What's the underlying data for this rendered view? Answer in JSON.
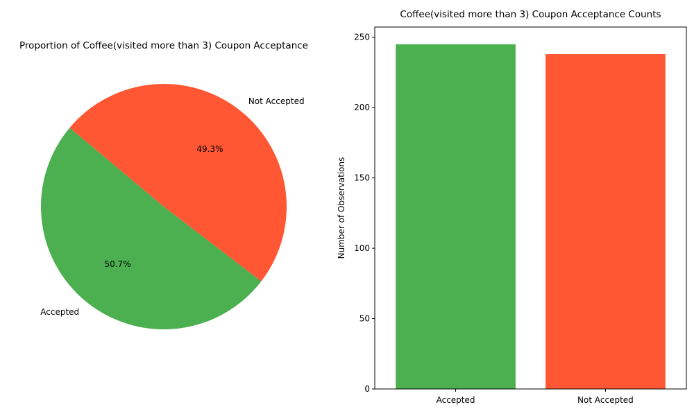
{
  "chart_data": [
    {
      "type": "pie",
      "title": "Proportion of Coffee(visited more than 3) Coupon Acceptance",
      "labels": [
        "Accepted",
        "Not Accepted"
      ],
      "values": [
        50.7,
        49.3
      ],
      "value_labels": [
        "50.7%",
        "49.3%"
      ],
      "colors": [
        "#4caf50",
        "#ff5733"
      ]
    },
    {
      "type": "bar",
      "title": "Coffee(visited more than 3) Coupon Acceptance Counts",
      "categories": [
        "Accepted",
        "Not Accepted"
      ],
      "values": [
        245,
        238
      ],
      "colors": [
        "#4caf50",
        "#ff5733"
      ],
      "xlabel": "",
      "ylabel": "Number of Observations",
      "ylim": [
        0,
        257.25
      ],
      "yticks": [
        0,
        50,
        100,
        150,
        200,
        250
      ],
      "grid": false
    }
  ]
}
